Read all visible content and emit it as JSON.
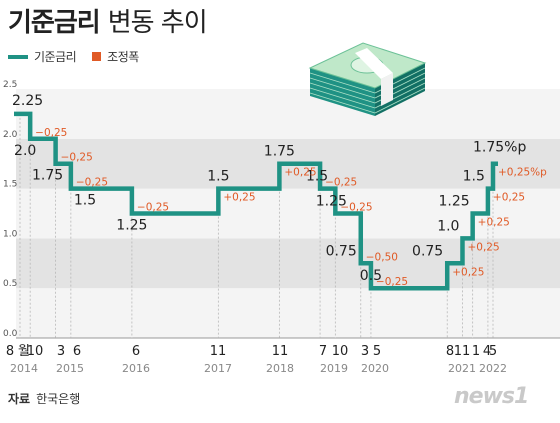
{
  "title": {
    "main": "기준금리",
    "sub": "변동 추이"
  },
  "legend": [
    {
      "label": "기준금리",
      "color": "#1f9284"
    },
    {
      "label": "조정폭",
      "color": "#e05a26"
    }
  ],
  "source": {
    "label": "자료",
    "name": "한국은행"
  },
  "logo": "news1",
  "icon": "money-stack-icon",
  "chart_data": {
    "type": "line",
    "step": true,
    "ylim": [
      0,
      2.5
    ],
    "yticks": [
      "0.0",
      "0.5",
      "1.0",
      "1.5",
      "2.0",
      "2.5"
    ],
    "grid": "alternating horizontal bands",
    "series": [
      {
        "name": "기준금리",
        "color": "#1f9284",
        "points": [
          {
            "date": "2014-08",
            "value": 2.25
          },
          {
            "date": "2014-10",
            "value": 2.0
          },
          {
            "date": "2015-03",
            "value": 1.75
          },
          {
            "date": "2015-06",
            "value": 1.5
          },
          {
            "date": "2016-06",
            "value": 1.25
          },
          {
            "date": "2017-11",
            "value": 1.5
          },
          {
            "date": "2018-11",
            "value": 1.75
          },
          {
            "date": "2019-07",
            "value": 1.5
          },
          {
            "date": "2019-10",
            "value": 1.25
          },
          {
            "date": "2020-03",
            "value": 0.75
          },
          {
            "date": "2020-05",
            "value": 0.5
          },
          {
            "date": "2021-08",
            "value": 0.75
          },
          {
            "date": "2021-11",
            "value": 1.0
          },
          {
            "date": "2022-01",
            "value": 1.25
          },
          {
            "date": "2022-04",
            "value": 1.5
          },
          {
            "date": "2022-05",
            "value": 1.75
          }
        ]
      }
    ],
    "value_labels": [
      "2.25",
      "2.0",
      "1.75",
      "1.5",
      "1.25",
      "1.5",
      "1.75",
      "1.5",
      "1.25",
      "0.75",
      "0.5",
      "0.75",
      "1.0",
      "1.25",
      "1.5",
      "1.75%p"
    ],
    "change_labels": [
      "−0,25",
      "−0,25",
      "−0,25",
      "−0,25",
      "+0,25",
      "+0,25",
      "−0,25",
      "−0,25",
      "−0,50",
      "−0,25",
      "+0,25",
      "+0,25",
      "+0,25",
      "+0,25",
      "+0,25%p"
    ],
    "x_month_labels": [
      "8",
      "월",
      "10",
      "3",
      "6",
      "6",
      "11",
      "11",
      "7",
      "10",
      "3",
      "5",
      "8",
      "11",
      "1",
      "4",
      "5"
    ],
    "x_year_labels": [
      "2014",
      "2015",
      "2016",
      "2017",
      "2018",
      "2019",
      "2020",
      "2021",
      "2022"
    ]
  }
}
